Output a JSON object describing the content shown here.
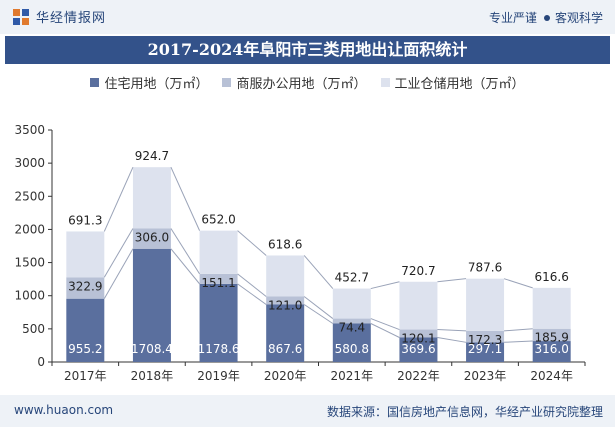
{
  "header": {
    "brand": "华经情报网",
    "tagline_left": "专业严谨",
    "tagline_right": "客观科学"
  },
  "footer": {
    "website": "www.huaon.com",
    "source": "数据来源：国信房地产信息网，华经产业研究院整理"
  },
  "colors": {
    "residential": "#5a6f9e",
    "commercial": "#b8c1d6",
    "industrial": "#dde2ee",
    "title_bg": "#33528a",
    "bar_bg": "#eef2f7",
    "brand": "#27467a"
  },
  "chart_data": {
    "type": "bar",
    "stacked": true,
    "title": "2017-2024年阜阳市三类用地出让面积统计",
    "categories": [
      "2017年",
      "2018年",
      "2019年",
      "2020年",
      "2021年",
      "2022年",
      "2023年",
      "2024年"
    ],
    "series": [
      {
        "name": "住宅用地（万㎡）",
        "values": [
          955.2,
          1708.4,
          1178.6,
          867.6,
          580.8,
          369.6,
          297.1,
          316.0
        ]
      },
      {
        "name": "商服办公用地（万㎡）",
        "values": [
          322.9,
          306.0,
          151.1,
          121.0,
          74.4,
          120.1,
          172.3,
          185.9
        ]
      },
      {
        "name": "工业仓储用地（万㎡）",
        "values": [
          691.3,
          924.7,
          652.0,
          618.6,
          452.7,
          720.7,
          787.6,
          616.6
        ]
      }
    ],
    "ylim": [
      0,
      3500
    ],
    "yticks": [
      0,
      500,
      1000,
      1500,
      2000,
      2500,
      3000,
      3500
    ],
    "xlabel": "",
    "ylabel": "",
    "legend_position": "top",
    "grid": false
  }
}
